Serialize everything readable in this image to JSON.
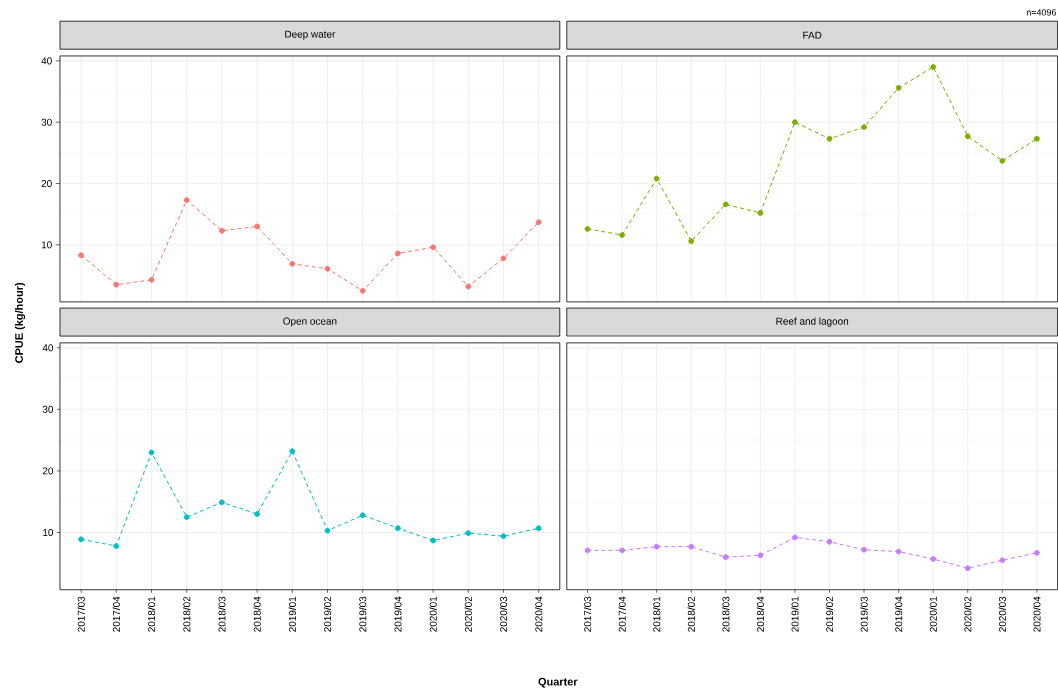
{
  "chart_data": [
    {
      "type": "line",
      "title": "Deep water",
      "ylabel": "CPUE (kg/hour)",
      "categories": [
        "2017/03",
        "2017/04",
        "2018/01",
        "2018/02",
        "2018/03",
        "2018/04",
        "2019/01",
        "2019/02",
        "2019/03",
        "2019/04",
        "2020/01",
        "2020/02",
        "2020/03",
        "2020/04"
      ],
      "values": [
        8.3,
        3.5,
        4.3,
        17.3,
        12.3,
        13.0,
        6.9,
        6.1,
        2.5,
        8.6,
        9.6,
        3.2,
        7.8,
        13.7
      ],
      "color": "#f8766d",
      "ylim": [
        0.7,
        40.8
      ],
      "yticks": [
        10,
        20,
        30,
        40
      ],
      "grid": true,
      "marker": "circle",
      "line_style": "dashed",
      "tick_labels": "y"
    },
    {
      "type": "line",
      "title": "FAD",
      "annotations": [
        "n=4096"
      ],
      "categories": [
        "2017/03",
        "2017/04",
        "2018/01",
        "2018/02",
        "2018/03",
        "2018/04",
        "2019/01",
        "2019/02",
        "2019/03",
        "2019/04",
        "2020/01",
        "2020/02",
        "2020/03",
        "2020/04"
      ],
      "values": [
        12.6,
        11.6,
        20.8,
        10.6,
        16.6,
        15.2,
        30.0,
        27.3,
        29.2,
        35.6,
        39.0,
        27.7,
        23.7,
        27.3
      ],
      "color": "#7cae00",
      "ylim": [
        0.7,
        40.8
      ],
      "yticks": [
        10,
        20,
        30,
        40
      ],
      "grid": true,
      "marker": "circle",
      "line_style": "dashed",
      "tick_labels": false
    },
    {
      "type": "line",
      "title": "Open ocean",
      "xlabel": "Quarter",
      "categories": [
        "2017/03",
        "2017/04",
        "2018/01",
        "2018/02",
        "2018/03",
        "2018/04",
        "2019/01",
        "2019/02",
        "2019/03",
        "2019/04",
        "2020/01",
        "2020/02",
        "2020/03",
        "2020/04"
      ],
      "values": [
        8.9,
        7.8,
        23.0,
        12.5,
        14.9,
        13.0,
        23.2,
        10.3,
        12.8,
        10.7,
        8.7,
        9.9,
        9.4,
        10.7
      ],
      "color": "#00bfc4",
      "ylim": [
        0.7,
        40.8
      ],
      "yticks": [
        10,
        20,
        30,
        40
      ],
      "grid": true,
      "marker": "circle",
      "line_style": "dashed"
    },
    {
      "type": "line",
      "title": "Reef and lagoon",
      "categories": [
        "2017/03",
        "2017/04",
        "2018/01",
        "2018/02",
        "2018/03",
        "2018/04",
        "2019/01",
        "2019/02",
        "2019/03",
        "2019/04",
        "2020/01",
        "2020/02",
        "2020/03",
        "2020/04"
      ],
      "values": [
        7.1,
        7.1,
        7.7,
        7.7,
        6.0,
        6.3,
        9.2,
        8.5,
        7.2,
        6.9,
        5.7,
        4.2,
        5.5,
        6.7
      ],
      "color": "#c77cff",
      "ylim": [
        0.7,
        40.8
      ],
      "yticks": [
        10,
        20,
        30,
        40
      ],
      "grid": true,
      "marker": "circle",
      "line_style": "dashed",
      "tick_labels": "x"
    }
  ]
}
